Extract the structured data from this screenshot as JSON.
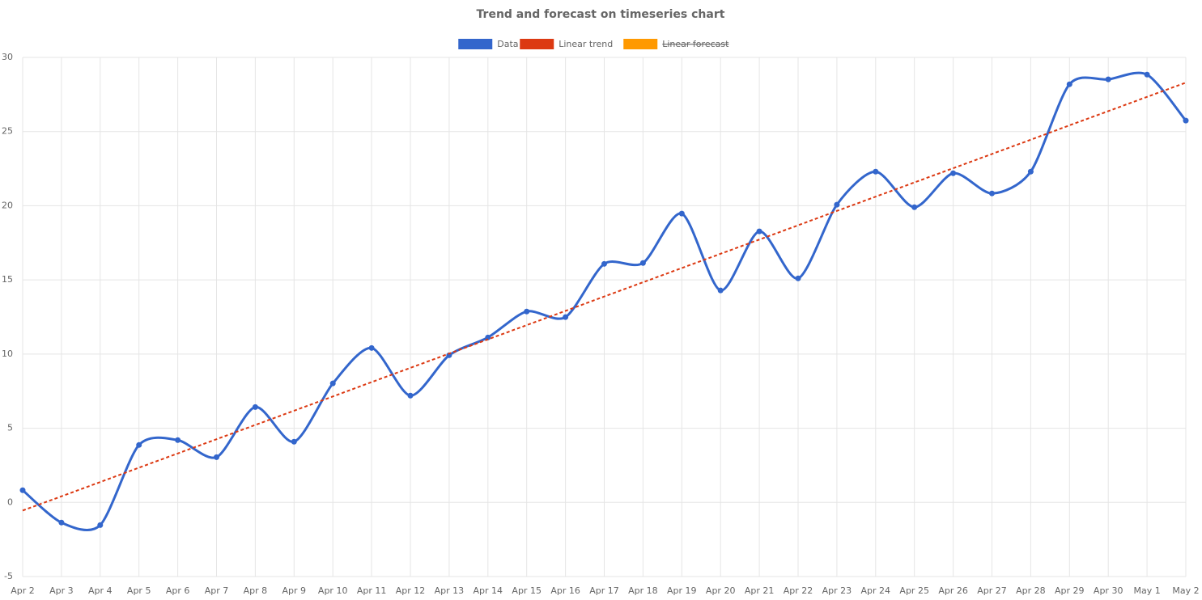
{
  "chart_data": {
    "type": "line",
    "title": "Trend and forecast on timeseries chart",
    "categories": [
      "Apr 2",
      "Apr 3",
      "Apr 4",
      "Apr 5",
      "Apr 6",
      "Apr 7",
      "Apr 8",
      "Apr 9",
      "Apr 10",
      "Apr 11",
      "Apr 12",
      "Apr 13",
      "Apr 14",
      "Apr 15",
      "Apr 16",
      "Apr 17",
      "Apr 18",
      "Apr 19",
      "Apr 20",
      "Apr 21",
      "Apr 22",
      "Apr 23",
      "Apr 24",
      "Apr 25",
      "Apr 26",
      "Apr 27",
      "Apr 28",
      "Apr 29",
      "Apr 30",
      "May 1",
      "May 2"
    ],
    "series": [
      {
        "name": "Data",
        "color": "#3366cc",
        "smooth": true,
        "markers": true,
        "values": [
          0.82,
          -1.36,
          -1.53,
          3.87,
          4.2,
          3.05,
          6.43,
          4.09,
          8.02,
          10.41,
          7.2,
          9.92,
          11.12,
          12.87,
          12.49,
          16.08,
          16.14,
          19.47,
          14.29,
          18.27,
          15.1,
          20.07,
          22.3,
          19.9,
          22.19,
          20.83,
          22.3,
          28.19,
          28.52,
          28.84,
          25.74
        ]
      },
      {
        "name": "Linear trend",
        "color": "#dc3912",
        "dashed": true,
        "values": [
          -0.55,
          0.41,
          1.37,
          2.34,
          3.3,
          4.26,
          5.22,
          6.18,
          7.14,
          8.11,
          9.07,
          10.03,
          10.99,
          11.95,
          12.91,
          13.88,
          14.84,
          15.8,
          16.76,
          17.72,
          18.68,
          19.65,
          20.61,
          21.57,
          22.53,
          23.49,
          24.45,
          25.42,
          26.38,
          27.34,
          28.3
        ]
      },
      {
        "name": "Linear forecast",
        "color": "#ff9900",
        "hidden": true
      }
    ],
    "ylim": [
      -5,
      30
    ],
    "yticks": [
      -5,
      0,
      5,
      10,
      15,
      20,
      25,
      30
    ],
    "grid": true,
    "legend": "top"
  }
}
